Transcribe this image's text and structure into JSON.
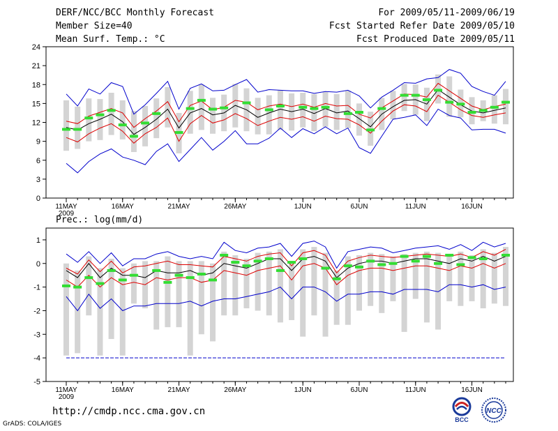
{
  "header": {
    "title": "DERF/NCC/BCC Monthly Forecast",
    "member_size": "Member Size=40",
    "variable1": "Mean Surf. Temp.: °C",
    "period": "For 2009/05/11-2009/06/19",
    "fcst_started": "Fcst Started Refer Date 2009/05/10",
    "fcst_produced": "Fcst Produced Date 2009/05/11"
  },
  "footer": {
    "url": "http://cmdp.ncc.cma.gov.cn",
    "credit": "GrADS: COLA/IGES",
    "logo_bcc": "BCC",
    "logo_ncc": "NCC"
  },
  "colors": {
    "envelope": "#0000cc",
    "percentile": "#dd0000",
    "mean": "#000000",
    "observed": "#33dd33",
    "box": "#d4d4d4",
    "frame": "#000000"
  },
  "chart_data": [
    {
      "type": "line",
      "id": "temperature",
      "title": "Mean Surf. Temp.: °C",
      "x_days": 40,
      "x_tick_labels": [
        "11MAY",
        "16MAY",
        "21MAY",
        "26MAY",
        "1JUN",
        "6JUN",
        "11JUN",
        "16JUN"
      ],
      "x_tick_days": [
        1,
        6,
        11,
        16,
        22,
        27,
        32,
        37
      ],
      "year_label": "2009",
      "ylim": [
        0,
        24
      ],
      "y_ticks": [
        0,
        3,
        6,
        9,
        12,
        15,
        18,
        21,
        24
      ],
      "series": [
        {
          "name": "max",
          "values": [
            16.5,
            14.6,
            17.3,
            16.5,
            18.3,
            17.7,
            13.3,
            14.8,
            16.6,
            18.5,
            14.1,
            17.4,
            18.1,
            17.0,
            17.1,
            18.0,
            18.8,
            16.8,
            17.2,
            17.1,
            17.0,
            17.0,
            16.6,
            16.9,
            16.8,
            17.1,
            16.2,
            14.3,
            16.0,
            17.1,
            18.3,
            18.2,
            18.9,
            19.1,
            20.4,
            19.8,
            17.7,
            16.9,
            16.3,
            18.5
          ]
        },
        {
          "name": "p75",
          "values": [
            12.2,
            11.8,
            13.0,
            13.6,
            14.2,
            13.5,
            11.2,
            12.6,
            13.8,
            15.3,
            12.1,
            14.7,
            15.4,
            14.0,
            14.4,
            15.5,
            15.2,
            14.0,
            14.6,
            14.9,
            14.5,
            14.9,
            14.4,
            15.0,
            14.6,
            14.7,
            13.3,
            12.7,
            14.3,
            15.4,
            16.5,
            16.4,
            16.0,
            18.2,
            17.0,
            15.8,
            14.6,
            14.0,
            14.5,
            14.9
          ]
        },
        {
          "name": "mean",
          "values": [
            11.2,
            10.8,
            11.8,
            12.5,
            13.3,
            12.1,
            10.1,
            11.2,
            12.5,
            14.1,
            11.1,
            13.5,
            14.2,
            13.2,
            13.5,
            14.7,
            14.0,
            12.8,
            13.5,
            14.1,
            13.7,
            14.1,
            13.4,
            14.2,
            13.5,
            13.8,
            12.6,
            11.3,
            13.3,
            14.5,
            15.5,
            15.6,
            14.9,
            17.2,
            16.0,
            14.8,
            13.8,
            13.5,
            13.9,
            14.3
          ]
        },
        {
          "name": "p25",
          "values": [
            9.6,
            8.9,
            10.2,
            11.1,
            11.8,
            10.6,
            8.7,
            10.2,
            11.2,
            12.7,
            9.0,
            11.8,
            13.1,
            11.9,
            12.4,
            13.4,
            12.6,
            11.5,
            12.2,
            12.8,
            12.5,
            12.9,
            12.2,
            13.0,
            12.6,
            12.5,
            11.6,
            10.3,
            12.2,
            13.8,
            14.8,
            14.6,
            13.7,
            16.3,
            15.2,
            14.0,
            13.1,
            12.8,
            13.2,
            13.5
          ]
        },
        {
          "name": "min",
          "values": [
            5.5,
            4.0,
            5.8,
            7.0,
            7.8,
            6.5,
            6.0,
            5.3,
            7.4,
            8.6,
            5.8,
            7.7,
            9.6,
            7.6,
            9.0,
            10.7,
            8.6,
            8.6,
            9.5,
            11.1,
            9.6,
            11.0,
            10.2,
            11.3,
            10.2,
            11.1,
            8.0,
            7.1,
            9.8,
            12.5,
            12.8,
            13.2,
            11.5,
            14.1,
            13.1,
            12.7,
            10.8,
            10.9,
            10.9,
            10.3
          ]
        },
        {
          "name": "obs",
          "values": [
            10.9,
            10.9,
            12.7,
            13.2,
            13.9,
            11.6,
            9.8,
            11.9,
            13.4,
            null,
            10.4,
            14.2,
            15.5,
            14.1,
            14.3,
            null,
            15.1,
            null,
            14.0,
            14.6,
            null,
            14.4,
            14.2,
            14.4,
            null,
            13.4,
            13.6,
            10.8,
            14.2,
            null,
            16.3,
            16.3,
            15.6,
            17.1,
            15.2,
            14.9,
            13.6,
            13.9,
            14.4,
            15.2
          ]
        },
        {
          "name": "box_top",
          "values": [
            15.5,
            14.5,
            15.8,
            15.7,
            16.7,
            15.5,
            13.8,
            14.6,
            15.8,
            17.6,
            13.5,
            17.0,
            18.0,
            15.9,
            16.4,
            18.1,
            17.4,
            15.9,
            16.3,
            17.1,
            16.6,
            16.7,
            16.5,
            16.8,
            16.5,
            17.0,
            15.0,
            13.7,
            15.9,
            17.0,
            18.1,
            18.0,
            17.5,
            19.6,
            19.3,
            17.2,
            16.0,
            15.5,
            16.3,
            17.3
          ]
        },
        {
          "name": "box_bottom",
          "values": [
            7.5,
            7.8,
            9.0,
            9.2,
            10.0,
            9.3,
            7.3,
            8.2,
            9.5,
            11.2,
            7.1,
            10.2,
            10.8,
            10.2,
            10.6,
            11.2,
            10.6,
            10.1,
            10.1,
            10.8,
            10.7,
            11.2,
            10.6,
            11.3,
            10.8,
            11.1,
            9.9,
            8.3,
            10.8,
            12.5,
            13.8,
            13.2,
            12.2,
            15.0,
            12.9,
            12.8,
            11.7,
            12.2,
            11.8,
            11.7
          ]
        }
      ]
    },
    {
      "type": "line",
      "id": "precipitation",
      "title": "Prec.: log(mm/d)",
      "x_days": 40,
      "x_tick_labels": [
        "11MAY",
        "16MAY",
        "21MAY",
        "26MAY",
        "1JUN",
        "6JUN",
        "11JUN",
        "16JUN"
      ],
      "x_tick_days": [
        1,
        6,
        11,
        16,
        22,
        27,
        32,
        37
      ],
      "year_label": "2009",
      "ylim": [
        -5,
        1.5
      ],
      "y_ticks": [
        -5,
        -4,
        -3,
        -2,
        -1,
        0,
        1
      ],
      "series": [
        {
          "name": "max",
          "values": [
            0.4,
            0.05,
            0.5,
            0.0,
            0.45,
            -0.1,
            0.2,
            0.2,
            0.4,
            0.5,
            0.3,
            0.2,
            0.3,
            0.2,
            0.9,
            0.55,
            0.45,
            0.65,
            0.7,
            0.85,
            0.3,
            0.85,
            0.95,
            0.7,
            -0.2,
            0.5,
            0.6,
            0.7,
            0.65,
            0.45,
            0.55,
            0.65,
            0.7,
            0.75,
            0.6,
            0.8,
            0.55,
            0.9,
            0.7,
            0.85
          ]
        },
        {
          "name": "p75",
          "values": [
            -0.2,
            -0.45,
            0.15,
            -0.35,
            0.1,
            -0.4,
            -0.15,
            -0.1,
            0.0,
            0.1,
            -0.05,
            -0.05,
            -0.1,
            -0.15,
            0.3,
            0.2,
            0.1,
            0.3,
            0.4,
            0.45,
            -0.1,
            0.45,
            0.55,
            0.35,
            -0.4,
            0.1,
            0.25,
            0.35,
            0.3,
            0.25,
            0.3,
            0.35,
            0.4,
            0.35,
            0.3,
            0.4,
            0.25,
            0.5,
            0.35,
            0.6
          ]
        },
        {
          "name": "mean",
          "values": [
            -0.3,
            -0.6,
            0.0,
            -0.6,
            -0.2,
            -0.5,
            -0.5,
            -0.6,
            -0.3,
            -0.4,
            -0.4,
            -0.3,
            -0.5,
            -0.4,
            0.0,
            -0.1,
            -0.2,
            0.0,
            0.2,
            0.2,
            -0.3,
            0.2,
            0.3,
            0.1,
            -0.6,
            -0.2,
            0.0,
            0.1,
            0.1,
            0.0,
            0.1,
            0.2,
            0.2,
            0.1,
            0.0,
            0.2,
            0.1,
            0.3,
            0.1,
            0.3
          ]
        },
        {
          "name": "p25",
          "values": [
            -0.7,
            -1.0,
            -0.5,
            -1.0,
            -0.6,
            -0.9,
            -0.8,
            -0.9,
            -0.6,
            -0.7,
            -0.6,
            -0.6,
            -0.8,
            -0.7,
            -0.3,
            -0.4,
            -0.5,
            -0.3,
            -0.2,
            -0.1,
            -0.7,
            -0.1,
            0.0,
            -0.2,
            -0.9,
            -0.5,
            -0.3,
            -0.2,
            -0.2,
            -0.3,
            -0.2,
            -0.1,
            -0.1,
            -0.2,
            -0.3,
            -0.1,
            -0.2,
            0.0,
            -0.2,
            0.0
          ]
        },
        {
          "name": "min",
          "values": [
            -1.4,
            -2.0,
            -1.3,
            -1.9,
            -1.5,
            -2.0,
            -1.8,
            -1.8,
            -1.7,
            -1.7,
            -1.7,
            -1.6,
            -1.8,
            -1.6,
            -1.5,
            -1.5,
            -1.4,
            -1.3,
            -1.2,
            -1.0,
            -1.5,
            -1.0,
            -1.0,
            -1.2,
            -1.6,
            -1.3,
            -1.3,
            -1.2,
            -1.2,
            -1.3,
            -1.1,
            -1.1,
            -1.1,
            -1.2,
            -0.9,
            -0.9,
            -1.0,
            -0.9,
            -1.1,
            -1.0
          ]
        },
        {
          "name": "obs",
          "values": [
            -0.95,
            -1.0,
            -0.6,
            -0.85,
            -0.3,
            -0.7,
            -0.5,
            null,
            -0.3,
            -0.8,
            -0.5,
            -0.6,
            -0.45,
            -0.7,
            0.35,
            0.05,
            -0.1,
            0.1,
            0.2,
            -0.3,
            0.05,
            0.2,
            null,
            -0.2,
            -0.65,
            -0.1,
            -0.15,
            0.1,
            -0.05,
            0.0,
            0.3,
            0.1,
            0.3,
            0.0,
            0.35,
            -0.05,
            0.25,
            0.2,
            null,
            0.35
          ]
        },
        {
          "name": "box_top",
          "values": [
            0.0,
            -0.3,
            0.3,
            -0.2,
            0.2,
            -0.2,
            0.0,
            0.1,
            0.1,
            0.3,
            0.1,
            0.1,
            0.1,
            0.0,
            0.5,
            0.35,
            0.2,
            0.45,
            0.5,
            0.6,
            0.05,
            0.6,
            0.7,
            0.45,
            -0.3,
            0.3,
            0.35,
            0.45,
            0.4,
            0.3,
            0.4,
            0.45,
            0.5,
            0.45,
            0.4,
            0.5,
            0.35,
            0.6,
            0.45,
            0.7
          ]
        },
        {
          "name": "box_bottom",
          "values": [
            -3.9,
            -3.8,
            -2.2,
            -3.9,
            -3.2,
            -3.9,
            -1.7,
            -1.9,
            -2.8,
            -2.7,
            -2.7,
            -3.9,
            -3.0,
            -3.3,
            -2.2,
            -2.2,
            -1.9,
            -2.0,
            -2.2,
            -2.5,
            -2.4,
            -3.1,
            -2.2,
            -3.1,
            -2.6,
            -2.6,
            -2.0,
            -1.8,
            -2.1,
            -1.6,
            -2.9,
            -1.5,
            -2.5,
            -2.8,
            -1.6,
            -1.8,
            -1.6,
            -1.9,
            -1.7,
            -1.8
          ]
        },
        {
          "name": "floor",
          "values": [
            -4,
            -4,
            -4,
            -4,
            -4,
            -4,
            -4,
            -4,
            -4,
            -4,
            -4,
            -4,
            -4,
            -4,
            -4,
            -4,
            -4,
            -4,
            -4,
            -4,
            -4,
            -4,
            -4,
            -4,
            -4,
            -4,
            -4,
            -4,
            -4,
            -4,
            -4,
            -4,
            -4,
            -4,
            -4,
            -4,
            -4,
            -4,
            -4,
            -4
          ]
        }
      ]
    }
  ]
}
